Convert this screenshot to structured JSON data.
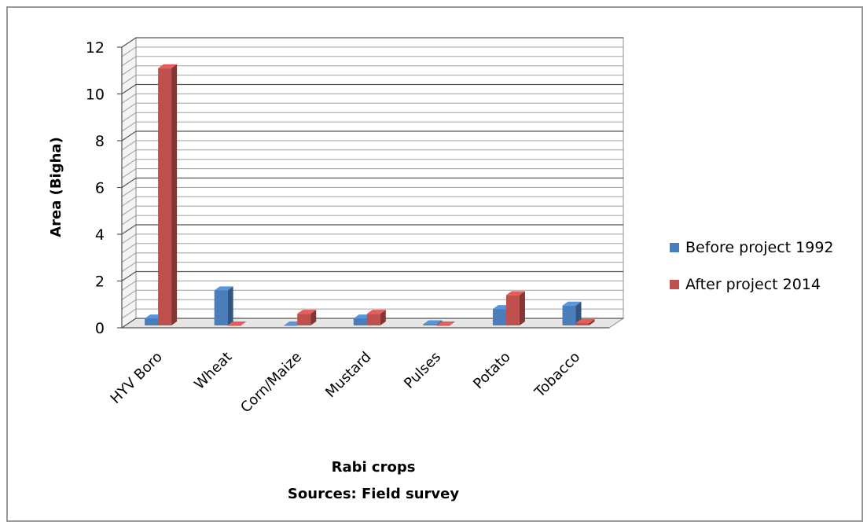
{
  "chart_data": {
    "type": "bar",
    "categories": [
      "HYV Boro",
      "Wheat",
      "Corn/Maize",
      "Mustard",
      "Pulses",
      "Potato",
      "Tobacco"
    ],
    "series": [
      {
        "name": "Before project 1992",
        "values": [
          0.3,
          1.5,
          0.0,
          0.3,
          0.05,
          0.7,
          0.85
        ],
        "color": "#4A7EBB"
      },
      {
        "name": "After project 2014",
        "values": [
          11.0,
          0.0,
          0.5,
          0.5,
          0.0,
          1.3,
          0.1
        ],
        "color": "#C0504D"
      }
    ],
    "ylim": [
      0,
      12
    ],
    "yticks": [
      0,
      2,
      4,
      6,
      8,
      10,
      12
    ],
    "ylabel": "Area (Bigha)",
    "xlabel": "Rabi crops",
    "xlabel_sub": "Sources: Field survey",
    "legend_position": "right",
    "grid": true,
    "style": "3d-clustered-column"
  }
}
